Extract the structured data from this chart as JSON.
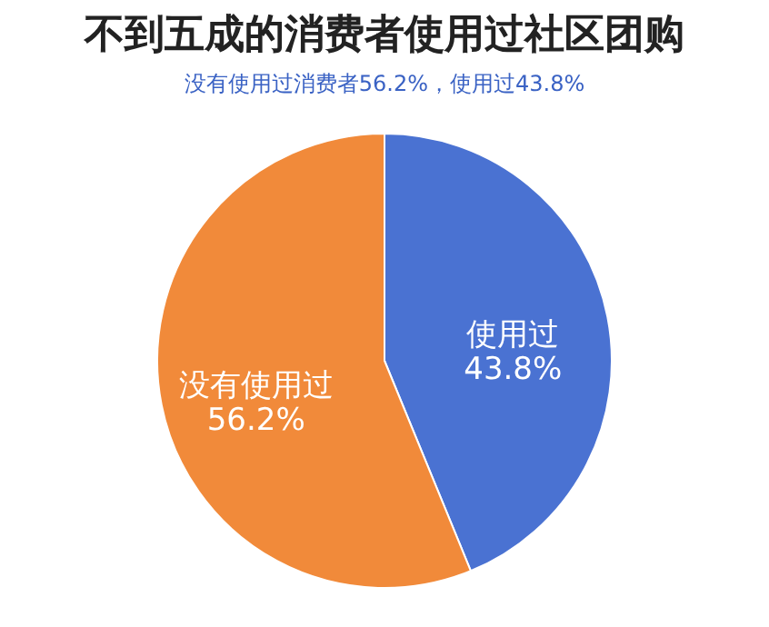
{
  "chart_data": {
    "type": "pie",
    "title": "不到五成的消费者使用过社区团购",
    "subtitle": "没有使用过消费者56.2%，使用过43.8%",
    "categories": [
      "使用过",
      "没有使用过"
    ],
    "values": [
      43.8,
      56.2
    ],
    "value_labels": [
      "43.8%",
      "56.2%"
    ],
    "colors": [
      "#4a72d2",
      "#f18a3a"
    ],
    "legend": false
  }
}
